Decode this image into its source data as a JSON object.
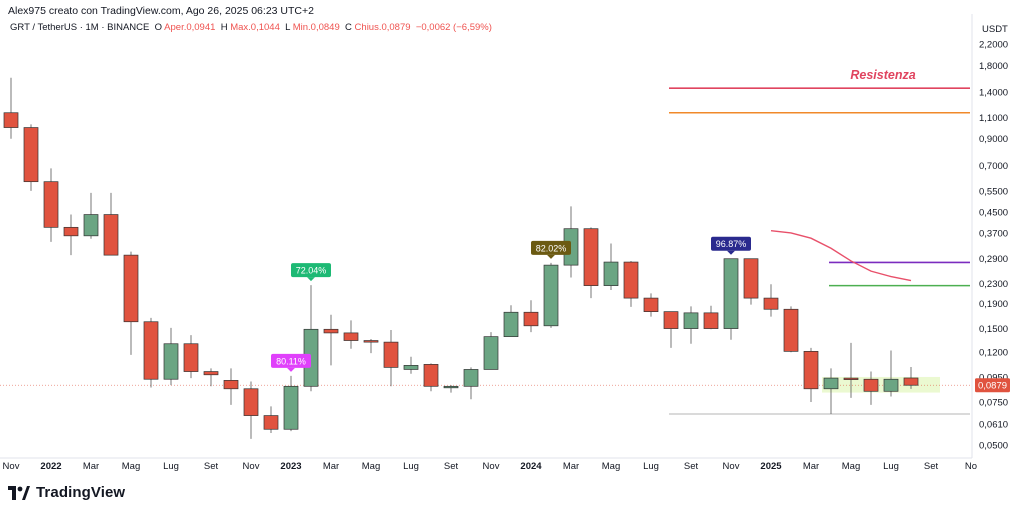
{
  "header": {
    "credit": "Alex975 creato con TradingView.com, Ago 26, 2025 06:23 UTC+2",
    "symbol": "GRT / TetherUS · 1M · BINANCE",
    "open_label": "O",
    "open_text": "Aper.0,0941",
    "high_label": "H",
    "high_text": "Max.0,1044",
    "low_label": "L",
    "low_text": "Min.0,0849",
    "close_label": "C",
    "close_text": "Chius.0,0879",
    "change_text": "−0,0062 (−6,59%)"
  },
  "axis": {
    "unit": "USDT",
    "current_price_label": "0,0879"
  },
  "brand": {
    "name": "TradingView"
  },
  "colors": {
    "up": "#6ba583",
    "down": "#e0533f",
    "resistance": "#e0445f",
    "orange": "#f0892a",
    "purple": "#7b2cbf",
    "green_line": "#4caf50",
    "red_curve": "#e8506a",
    "range_box": "#e6f7c6"
  },
  "chart_data": {
    "type": "candlestick",
    "scale": "log",
    "y_ticks": [
      {
        "label": "2,2000",
        "v": 2.2
      },
      {
        "label": "1,8000",
        "v": 1.8
      },
      {
        "label": "1,4000",
        "v": 1.4
      },
      {
        "label": "1,1000",
        "v": 1.1
      },
      {
        "label": "0,9000",
        "v": 0.9
      },
      {
        "label": "0,7000",
        "v": 0.7
      },
      {
        "label": "0,5500",
        "v": 0.55
      },
      {
        "label": "0,4500",
        "v": 0.45
      },
      {
        "label": "0,3700",
        "v": 0.37
      },
      {
        "label": "0,2900",
        "v": 0.29
      },
      {
        "label": "0,2300",
        "v": 0.23
      },
      {
        "label": "0,1900",
        "v": 0.19
      },
      {
        "label": "0,1500",
        "v": 0.15
      },
      {
        "label": "0,1200",
        "v": 0.12
      },
      {
        "label": "0,0950",
        "v": 0.095
      },
      {
        "label": "0,0750",
        "v": 0.075
      },
      {
        "label": "0,0610",
        "v": 0.061
      },
      {
        "label": "0,0500",
        "v": 0.05
      }
    ],
    "x_ticks": [
      {
        "label": "Nov",
        "i": 0
      },
      {
        "label": "2022",
        "i": 2,
        "bold": true
      },
      {
        "label": "Mar",
        "i": 4
      },
      {
        "label": "Mag",
        "i": 6
      },
      {
        "label": "Lug",
        "i": 8
      },
      {
        "label": "Set",
        "i": 10
      },
      {
        "label": "Nov",
        "i": 12
      },
      {
        "label": "2023",
        "i": 14,
        "bold": true
      },
      {
        "label": "Mar",
        "i": 16
      },
      {
        "label": "Mag",
        "i": 18
      },
      {
        "label": "Lug",
        "i": 20
      },
      {
        "label": "Set",
        "i": 22
      },
      {
        "label": "Nov",
        "i": 24
      },
      {
        "label": "2024",
        "i": 26,
        "bold": true
      },
      {
        "label": "Mar",
        "i": 28
      },
      {
        "label": "Mag",
        "i": 30
      },
      {
        "label": "Lug",
        "i": 32
      },
      {
        "label": "Set",
        "i": 34
      },
      {
        "label": "Nov",
        "i": 36
      },
      {
        "label": "2025",
        "i": 38,
        "bold": true
      },
      {
        "label": "Mar",
        "i": 40
      },
      {
        "label": "Mag",
        "i": 42
      },
      {
        "label": "Lug",
        "i": 44
      },
      {
        "label": "Set",
        "i": 46
      },
      {
        "label": "No",
        "i": 48
      }
    ],
    "candles": [
      {
        "o": 1.15,
        "h": 1.6,
        "l": 0.9,
        "c": 1.0
      },
      {
        "o": 1.0,
        "h": 1.03,
        "l": 0.55,
        "c": 0.6
      },
      {
        "o": 0.6,
        "h": 0.68,
        "l": 0.34,
        "c": 0.39
      },
      {
        "o": 0.39,
        "h": 0.44,
        "l": 0.3,
        "c": 0.36
      },
      {
        "o": 0.36,
        "h": 0.54,
        "l": 0.35,
        "c": 0.44
      },
      {
        "o": 0.44,
        "h": 0.54,
        "l": 0.3,
        "c": 0.3
      },
      {
        "o": 0.3,
        "h": 0.31,
        "l": 0.117,
        "c": 0.16
      },
      {
        "o": 0.16,
        "h": 0.166,
        "l": 0.086,
        "c": 0.093
      },
      {
        "o": 0.093,
        "h": 0.151,
        "l": 0.088,
        "c": 0.13
      },
      {
        "o": 0.13,
        "h": 0.141,
        "l": 0.094,
        "c": 0.1
      },
      {
        "o": 0.1,
        "h": 0.103,
        "l": 0.087,
        "c": 0.097
      },
      {
        "o": 0.092,
        "h": 0.103,
        "l": 0.073,
        "c": 0.085
      },
      {
        "o": 0.085,
        "h": 0.091,
        "l": 0.053,
        "c": 0.066
      },
      {
        "o": 0.066,
        "h": 0.072,
        "l": 0.056,
        "c": 0.058
      },
      {
        "o": 0.058,
        "h": 0.096,
        "l": 0.057,
        "c": 0.087
      },
      {
        "o": 0.087,
        "h": 0.226,
        "l": 0.083,
        "c": 0.149
      },
      {
        "o": 0.149,
        "h": 0.171,
        "l": 0.106,
        "c": 0.144
      },
      {
        "o": 0.144,
        "h": 0.162,
        "l": 0.124,
        "c": 0.134
      },
      {
        "o": 0.134,
        "h": 0.136,
        "l": 0.119,
        "c": 0.132
      },
      {
        "o": 0.132,
        "h": 0.148,
        "l": 0.087,
        "c": 0.104
      },
      {
        "o": 0.102,
        "h": 0.115,
        "l": 0.098,
        "c": 0.106
      },
      {
        "o": 0.107,
        "h": 0.108,
        "l": 0.083,
        "c": 0.087
      },
      {
        "o": 0.087,
        "h": 0.088,
        "l": 0.082,
        "c": 0.087
      },
      {
        "o": 0.087,
        "h": 0.104,
        "l": 0.077,
        "c": 0.102
      },
      {
        "o": 0.102,
        "h": 0.145,
        "l": 0.102,
        "c": 0.139
      },
      {
        "o": 0.139,
        "h": 0.187,
        "l": 0.139,
        "c": 0.175
      },
      {
        "o": 0.175,
        "h": 0.196,
        "l": 0.145,
        "c": 0.154
      },
      {
        "o": 0.154,
        "h": 0.279,
        "l": 0.151,
        "c": 0.273
      },
      {
        "o": 0.273,
        "h": 0.475,
        "l": 0.243,
        "c": 0.385
      },
      {
        "o": 0.385,
        "h": 0.39,
        "l": 0.2,
        "c": 0.225
      },
      {
        "o": 0.225,
        "h": 0.335,
        "l": 0.216,
        "c": 0.281
      },
      {
        "o": 0.281,
        "h": 0.284,
        "l": 0.184,
        "c": 0.2
      },
      {
        "o": 0.2,
        "h": 0.209,
        "l": 0.168,
        "c": 0.176
      },
      {
        "o": 0.176,
        "h": 0.176,
        "l": 0.125,
        "c": 0.15
      },
      {
        "o": 0.15,
        "h": 0.185,
        "l": 0.13,
        "c": 0.174
      },
      {
        "o": 0.174,
        "h": 0.186,
        "l": 0.149,
        "c": 0.15
      },
      {
        "o": 0.15,
        "h": 0.29,
        "l": 0.135,
        "c": 0.29
      },
      {
        "o": 0.29,
        "h": 0.29,
        "l": 0.188,
        "c": 0.2
      },
      {
        "o": 0.2,
        "h": 0.228,
        "l": 0.168,
        "c": 0.18
      },
      {
        "o": 0.18,
        "h": 0.185,
        "l": 0.12,
        "c": 0.121
      },
      {
        "o": 0.121,
        "h": 0.125,
        "l": 0.075,
        "c": 0.085
      },
      {
        "o": 0.085,
        "h": 0.103,
        "l": 0.067,
        "c": 0.094
      },
      {
        "o": 0.094,
        "h": 0.131,
        "l": 0.078,
        "c": 0.093
      },
      {
        "o": 0.093,
        "h": 0.1,
        "l": 0.073,
        "c": 0.083
      },
      {
        "o": 0.083,
        "h": 0.122,
        "l": 0.079,
        "c": 0.093
      },
      {
        "o": 0.0941,
        "h": 0.1044,
        "l": 0.0849,
        "c": 0.0879
      }
    ],
    "badges": [
      {
        "text": "72.04%",
        "i": 15,
        "anchor": 0.226,
        "color": "#1db974"
      },
      {
        "text": "80.11%",
        "i": 14,
        "anchor": 0.096,
        "color": "#e040fb"
      },
      {
        "text": "82.02%",
        "i": 27,
        "anchor": 0.279,
        "color": "#6b5a12"
      },
      {
        "text": "96.87%",
        "i": 36,
        "anchor": 0.29,
        "color": "#2a2a8e"
      }
    ],
    "levels": [
      {
        "name": "resistance",
        "v": 1.45,
        "i_from": 33,
        "color": "#e0445f"
      },
      {
        "name": "orange",
        "v": 1.15,
        "i_from": 33,
        "color": "#f0892a"
      },
      {
        "name": "purple",
        "v": 0.28,
        "i_from": 41,
        "color": "#7b2cbf"
      },
      {
        "name": "green",
        "v": 0.225,
        "i_from": 41,
        "color": "#4caf50"
      },
      {
        "name": "grey_low",
        "v": 0.067,
        "i_from": 33,
        "color": "#9e9e9e"
      }
    ],
    "resistance_text": "Resistenza",
    "curve": [
      {
        "i": 38,
        "v": 0.378
      },
      {
        "i": 39,
        "v": 0.37
      },
      {
        "i": 40,
        "v": 0.352
      },
      {
        "i": 41,
        "v": 0.32
      },
      {
        "i": 42,
        "v": 0.284
      },
      {
        "i": 43,
        "v": 0.258
      },
      {
        "i": 44,
        "v": 0.245
      },
      {
        "i": 45,
        "v": 0.236
      }
    ],
    "range_box": {
      "i_from": 41,
      "i_to": 46,
      "v_top": 0.095,
      "v_bottom": 0.082
    }
  }
}
